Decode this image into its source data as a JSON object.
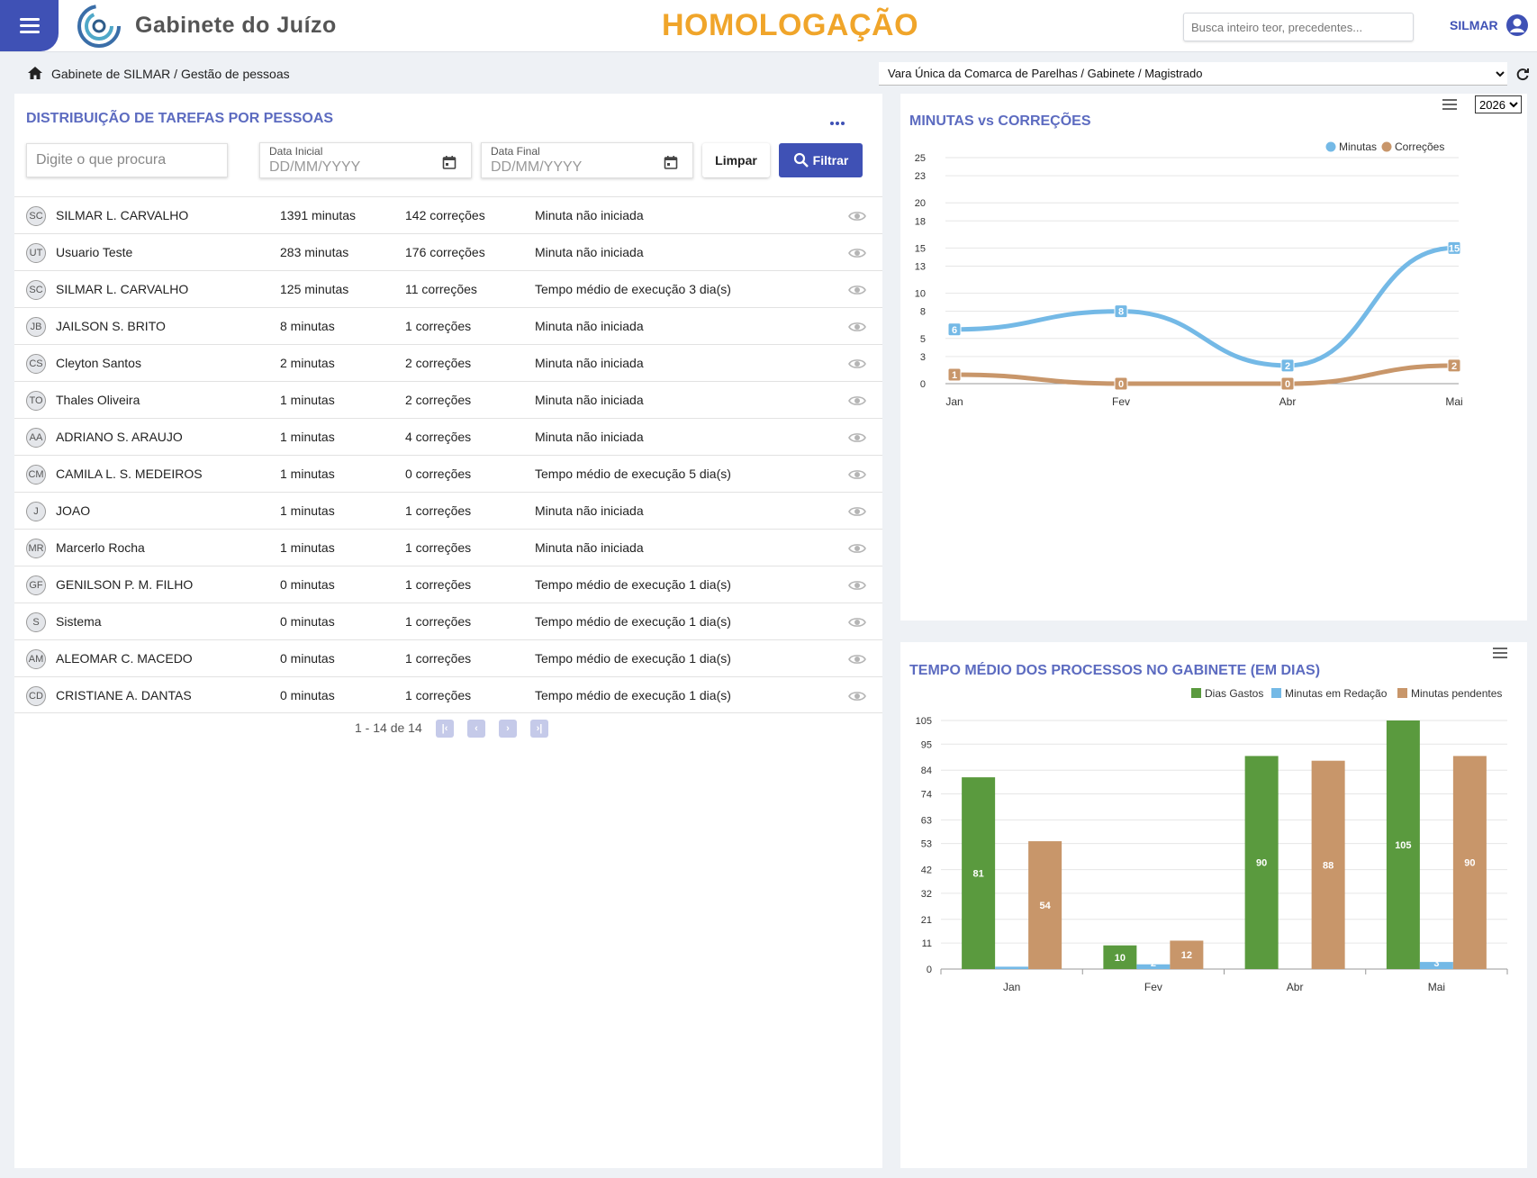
{
  "header": {
    "app_title": "Gabinete do Juízo",
    "env_title": "HOMOLOGAÇÃO",
    "search_placeholder": "Busca inteiro teor, precedentes...",
    "user_name": "SILMAR"
  },
  "breadcrumb": "Gabinete de SILMAR / Gestão de pessoas",
  "vara_select": "Vara Única da Comarca de Parelhas / Gabinete / Magistrado",
  "colors": {
    "primary": "#3f51b5",
    "title": "#5c6bc0",
    "env": "#f0a52a",
    "minutas": "#74b9e6",
    "correcoes": "#c8966a",
    "dias": "#5a9a3e"
  },
  "distribuicao": {
    "title": "DISTRIBUIÇÃO DE TAREFAS POR PESSOAS",
    "search_placeholder": "Digite o que procura",
    "data_inicial_label": "Data Inicial",
    "data_final_label": "Data Final",
    "date_placeholder": "DD/MM/YYYY",
    "btn_limpar": "Limpar",
    "btn_filtrar": "Filtrar",
    "rows": [
      {
        "initials": "SC",
        "name": "SILMAR L. CARVALHO",
        "minutas": "1391 minutas",
        "correcoes": "142 correções",
        "status": "Minuta não iniciada"
      },
      {
        "initials": "UT",
        "name": "Usuario Teste",
        "minutas": "283 minutas",
        "correcoes": "176 correções",
        "status": "Minuta não iniciada"
      },
      {
        "initials": "SC",
        "name": "SILMAR L. CARVALHO",
        "minutas": "125 minutas",
        "correcoes": "11 correções",
        "status": "Tempo médio de execução 3 dia(s)"
      },
      {
        "initials": "JB",
        "name": "JAILSON S. BRITO",
        "minutas": "8 minutas",
        "correcoes": "1 correções",
        "status": "Minuta não iniciada"
      },
      {
        "initials": "CS",
        "name": "Cleyton Santos",
        "minutas": "2 minutas",
        "correcoes": "2 correções",
        "status": "Minuta não iniciada"
      },
      {
        "initials": "TO",
        "name": "Thales Oliveira",
        "minutas": "1 minutas",
        "correcoes": "2 correções",
        "status": "Minuta não iniciada"
      },
      {
        "initials": "AA",
        "name": "ADRIANO S. ARAUJO",
        "minutas": "1 minutas",
        "correcoes": "4 correções",
        "status": "Minuta não iniciada"
      },
      {
        "initials": "CM",
        "name": "CAMILA L. S. MEDEIROS",
        "minutas": "1 minutas",
        "correcoes": "0 correções",
        "status": "Tempo médio de execução 5 dia(s)"
      },
      {
        "initials": "J",
        "name": "JOAO",
        "minutas": "1 minutas",
        "correcoes": "1 correções",
        "status": "Minuta não iniciada"
      },
      {
        "initials": "MR",
        "name": "Marcerlo Rocha",
        "minutas": "1 minutas",
        "correcoes": "1 correções",
        "status": "Minuta não iniciada"
      },
      {
        "initials": "GF",
        "name": "GENILSON P. M. FILHO",
        "minutas": "0 minutas",
        "correcoes": "1 correções",
        "status": "Tempo médio de execução 1 dia(s)"
      },
      {
        "initials": "S",
        "name": "Sistema",
        "minutas": "0 minutas",
        "correcoes": "1 correções",
        "status": "Tempo médio de execução 1 dia(s)"
      },
      {
        "initials": "AM",
        "name": "ALEOMAR C. MACEDO",
        "minutas": "0 minutas",
        "correcoes": "1 correções",
        "status": "Tempo médio de execução 1 dia(s)"
      },
      {
        "initials": "CD",
        "name": "CRISTIANE A. DANTAS",
        "minutas": "0 minutas",
        "correcoes": "1 correções",
        "status": "Tempo médio de execução 1 dia(s)"
      }
    ],
    "pager_text": "1 - 14 de 14"
  },
  "year_select": "2026",
  "chart_data": [
    {
      "type": "line",
      "title": "MINUTAS vs CORREÇÕES",
      "categories": [
        "Jan",
        "Fev",
        "Abr",
        "Mai"
      ],
      "yticks": [
        "0",
        "3",
        "5",
        "8",
        "10",
        "13",
        "15",
        "18",
        "20",
        "23",
        "25"
      ],
      "ylim": [
        0,
        25
      ],
      "legend_position": "top-right",
      "series": [
        {
          "name": "Minutas",
          "color": "#74b9e6",
          "values": [
            6,
            8,
            2,
            15
          ]
        },
        {
          "name": "Correções",
          "color": "#c8966a",
          "values": [
            1,
            0,
            0,
            2
          ]
        }
      ]
    },
    {
      "type": "bar",
      "title": "TEMPO MÉDIO DOS PROCESSOS NO GABINETE (EM DIAS)",
      "categories": [
        "Jan",
        "Fev",
        "Abr",
        "Mai"
      ],
      "yticks": [
        "0",
        "11",
        "21",
        "32",
        "42",
        "53",
        "63",
        "74",
        "84",
        "95",
        "105"
      ],
      "ylim": [
        0,
        105
      ],
      "legend_position": "top-right",
      "series": [
        {
          "name": "Dias Gastos",
          "color": "#5a9a3e",
          "values": [
            81,
            10,
            90,
            105
          ]
        },
        {
          "name": "Minutas em Redação",
          "color": "#74b9e6",
          "values": [
            1,
            2,
            0,
            3
          ]
        },
        {
          "name": "Minutas pendentes",
          "color": "#c8966a",
          "values": [
            54,
            12,
            88,
            90
          ]
        }
      ]
    }
  ]
}
